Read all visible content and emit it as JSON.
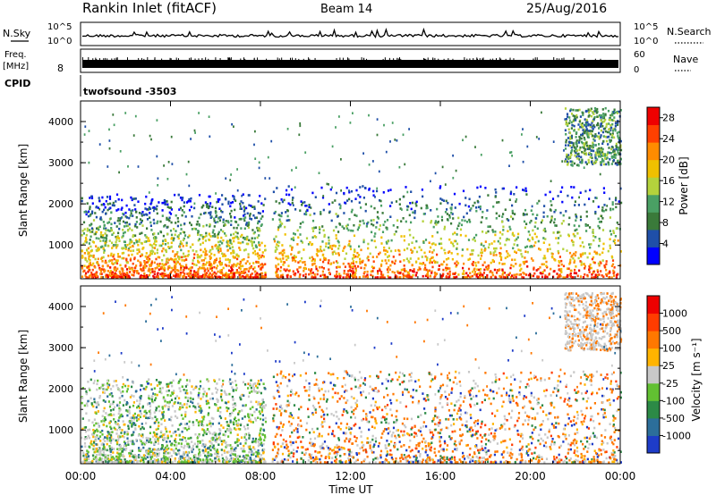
{
  "header": {
    "station": "Rankin Inlet (fitACF)",
    "beam": "Beam 14",
    "date": "25/Aug/2016"
  },
  "strip_nsky": {
    "left_label": "N.Sky",
    "right_label": "N.Search",
    "tick_top": "10^5",
    "tick_bottom": "10^0"
  },
  "strip_freq": {
    "left_label_1": "Freq.",
    "left_label_2": "[MHz]",
    "tick_top": "8",
    "right_label": "Nave",
    "right_tick_top": "60",
    "right_tick_bottom": "0"
  },
  "strip_cpid": {
    "label": "CPID",
    "value": "twofsound -3503"
  },
  "chart_data": [
    {
      "type": "heatmap",
      "name": "power",
      "xlabel": "Time UT",
      "ylabel": "Slant Range [km]",
      "x_ticks": [
        "00:00",
        "04:00",
        "08:00",
        "12:00",
        "16:00",
        "20:00",
        "00:00"
      ],
      "x_range_hours": [
        0,
        24
      ],
      "y_ticks": [
        1000,
        2000,
        3000,
        4000
      ],
      "ylim": [
        180,
        4500
      ],
      "colorbar": {
        "label": "Power [dB]",
        "ticks": [
          4,
          8,
          12,
          16,
          20,
          24,
          28
        ],
        "range": [
          0,
          30
        ],
        "colors": [
          "#0000ff",
          "#1f4fa8",
          "#3a7a3a",
          "#4aa064",
          "#b4d23c",
          "#f0c000",
          "#ff8c00",
          "#ff4000",
          "#ee0000"
        ]
      },
      "features": [
        {
          "time_start": 0.0,
          "time_end": 8.2,
          "range_low": 180,
          "range_high": 2200,
          "peak_db": 28
        },
        {
          "time_start": 8.5,
          "time_end": 24.0,
          "range_low": 180,
          "range_high": 2400,
          "peak_db": 28
        },
        {
          "time_start": 21.5,
          "time_end": 24.0,
          "range_low": 2900,
          "range_high": 4300,
          "peak_db": 14
        }
      ]
    },
    {
      "type": "heatmap",
      "name": "velocity",
      "xlabel": "Time UT",
      "ylabel": "Slant Range [km]",
      "x_ticks": [
        "00:00",
        "04:00",
        "08:00",
        "12:00",
        "16:00",
        "20:00",
        "00:00"
      ],
      "x_range_hours": [
        0,
        24
      ],
      "y_ticks": [
        1000,
        2000,
        3000,
        4000
      ],
      "ylim": [
        180,
        4500
      ],
      "colorbar": {
        "label": "Velocity [m s⁻¹]",
        "ticks": [
          1000,
          500,
          100,
          25,
          -25,
          -100,
          -500,
          -1000
        ],
        "colors": [
          "#1e3cc8",
          "#2c6e9a",
          "#2c8a46",
          "#62c032",
          "#c8c8c8",
          "#ffb400",
          "#ff7800",
          "#ff3c00",
          "#ee0000"
        ]
      },
      "features": [
        {
          "time_start": 0.0,
          "time_end": 8.2,
          "range_low": 180,
          "range_high": 2200,
          "dominant": "toward"
        },
        {
          "time_start": 8.5,
          "time_end": 24.0,
          "range_low": 180,
          "range_high": 2400,
          "dominant": "away"
        },
        {
          "time_start": 21.5,
          "time_end": 24.0,
          "range_low": 2900,
          "range_high": 4300,
          "dominant": "ground"
        }
      ]
    }
  ]
}
